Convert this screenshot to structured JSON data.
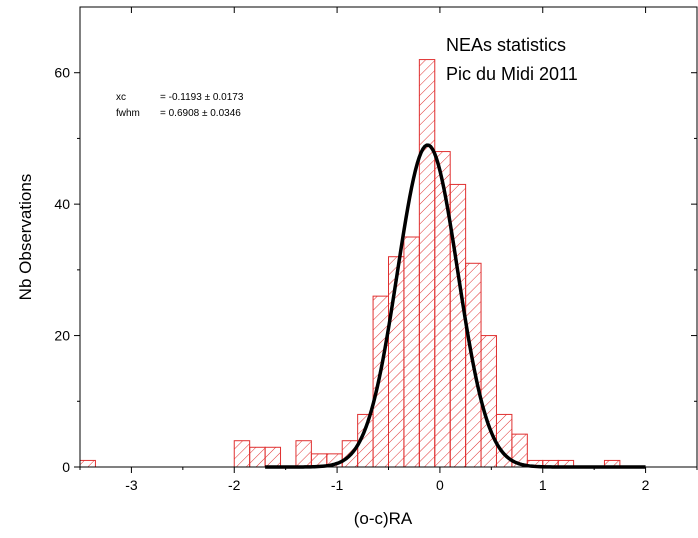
{
  "chart_data": {
    "type": "bar",
    "title_lines": [
      "NEAs statistics",
      "Pic du Midi 2011"
    ],
    "xlabel": "(o-c)RA",
    "ylabel": "Nb Observations",
    "xlim": [
      -3.5,
      2.5
    ],
    "ylim": [
      0,
      70
    ],
    "x_ticks": [
      -3,
      -2,
      -1,
      0,
      1,
      2
    ],
    "x_tick_labels": [
      "-3",
      "-2",
      "-1",
      "0",
      "1",
      "2"
    ],
    "y_ticks": [
      0,
      20,
      40,
      60
    ],
    "y_tick_labels": [
      "0",
      "20",
      "40",
      "60"
    ],
    "bin_width": 0.15,
    "bars": [
      {
        "x0": -3.5,
        "value": 1
      },
      {
        "x0": -2.0,
        "value": 4
      },
      {
        "x0": -1.85,
        "value": 3
      },
      {
        "x0": -1.7,
        "value": 3
      },
      {
        "x0": -1.4,
        "value": 4
      },
      {
        "x0": -1.25,
        "value": 2
      },
      {
        "x0": -1.1,
        "value": 2
      },
      {
        "x0": -0.95,
        "value": 4
      },
      {
        "x0": -0.8,
        "value": 8
      },
      {
        "x0": -0.65,
        "value": 26
      },
      {
        "x0": -0.5,
        "value": 32
      },
      {
        "x0": -0.35,
        "value": 35
      },
      {
        "x0": -0.2,
        "value": 62
      },
      {
        "x0": -0.05,
        "value": 48
      },
      {
        "x0": 0.1,
        "value": 43
      },
      {
        "x0": 0.25,
        "value": 31
      },
      {
        "x0": 0.4,
        "value": 20
      },
      {
        "x0": 0.55,
        "value": 8
      },
      {
        "x0": 0.7,
        "value": 5
      },
      {
        "x0": 0.85,
        "value": 1
      },
      {
        "x0": 1.0,
        "value": 1
      },
      {
        "x0": 1.15,
        "value": 1
      },
      {
        "x0": 1.6,
        "value": 1
      }
    ],
    "fit": {
      "type": "gaussian",
      "xc": -0.1193,
      "fwhm": 0.6908,
      "peak": 49,
      "x_range": [
        -1.7,
        2.0
      ],
      "label_lines": [
        {
          "name": "xc",
          "value": "= -0.1193 ± 0.0173"
        },
        {
          "name": "fwhm",
          "value": "=  0.6908 ± 0.0346"
        }
      ]
    },
    "colors": {
      "bars": "#e03030",
      "fit_line": "#000000",
      "axis": "#000000"
    },
    "grid": false,
    "legend": "none"
  }
}
